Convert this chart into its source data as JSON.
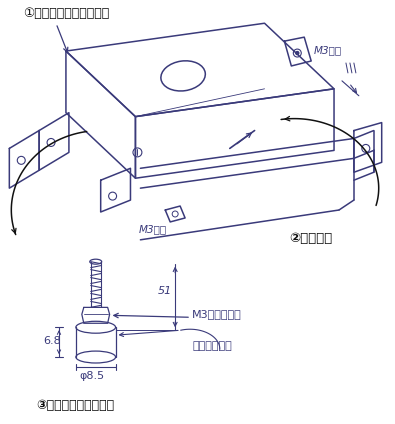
{
  "bg_color": "#ffffff",
  "ink_color": "#3a3a7a",
  "label1": "①本体ステンレスケース",
  "label2": "②正面フタ",
  "label3": "③高さ調整支持ボルト",
  "label_m3_top": "M3ネジ",
  "label_m3_bottom": "M3ネジ",
  "label_m3nut": "M3ナット付き",
  "label_rubber": "低弾性ラバー",
  "label_phi": "φ8.5",
  "label_68": "6.8",
  "label_51": "51",
  "figsize": [
    3.95,
    4.24
  ],
  "dpi": 100
}
